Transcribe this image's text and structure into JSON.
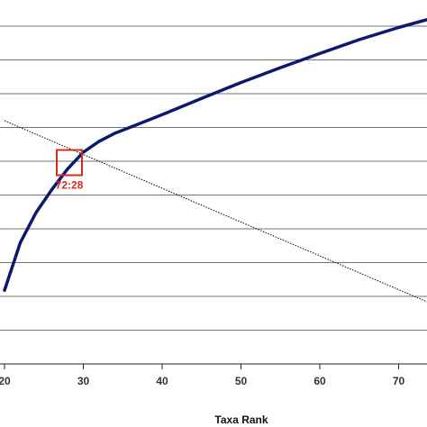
{
  "chart_data": {
    "type": "line",
    "title": "",
    "xlabel": "Taxa Rank",
    "ylabel": "",
    "xlim": [
      20,
      77
    ],
    "x_ticks": [
      "20",
      "30",
      "40",
      "50",
      "60",
      "70"
    ],
    "grid": true,
    "series": [
      {
        "role": "cumulative-curve",
        "color": "#0b1a6e",
        "x": [
          20,
          22,
          24,
          26,
          28,
          30,
          32,
          34,
          36,
          40,
          45,
          50,
          55,
          60,
          65,
          70,
          75,
          77
        ],
        "y": [
          21.8,
          35.9,
          44.8,
          51.6,
          57.7,
          62.7,
          65.9,
          68.3,
          70.1,
          73.8,
          78.6,
          83.3,
          87.7,
          91.9,
          96.0,
          99.6,
          102.8,
          104.0
        ]
      },
      {
        "role": "reference-line",
        "color": "#000000",
        "dashed": true,
        "x": [
          20,
          77
        ],
        "y": [
          72.0,
          15.0
        ]
      }
    ],
    "annotations": [
      {
        "label": "72:28",
        "x": 28,
        "y": 58.0,
        "color": "#d42b1e",
        "shape": "square"
      }
    ]
  }
}
